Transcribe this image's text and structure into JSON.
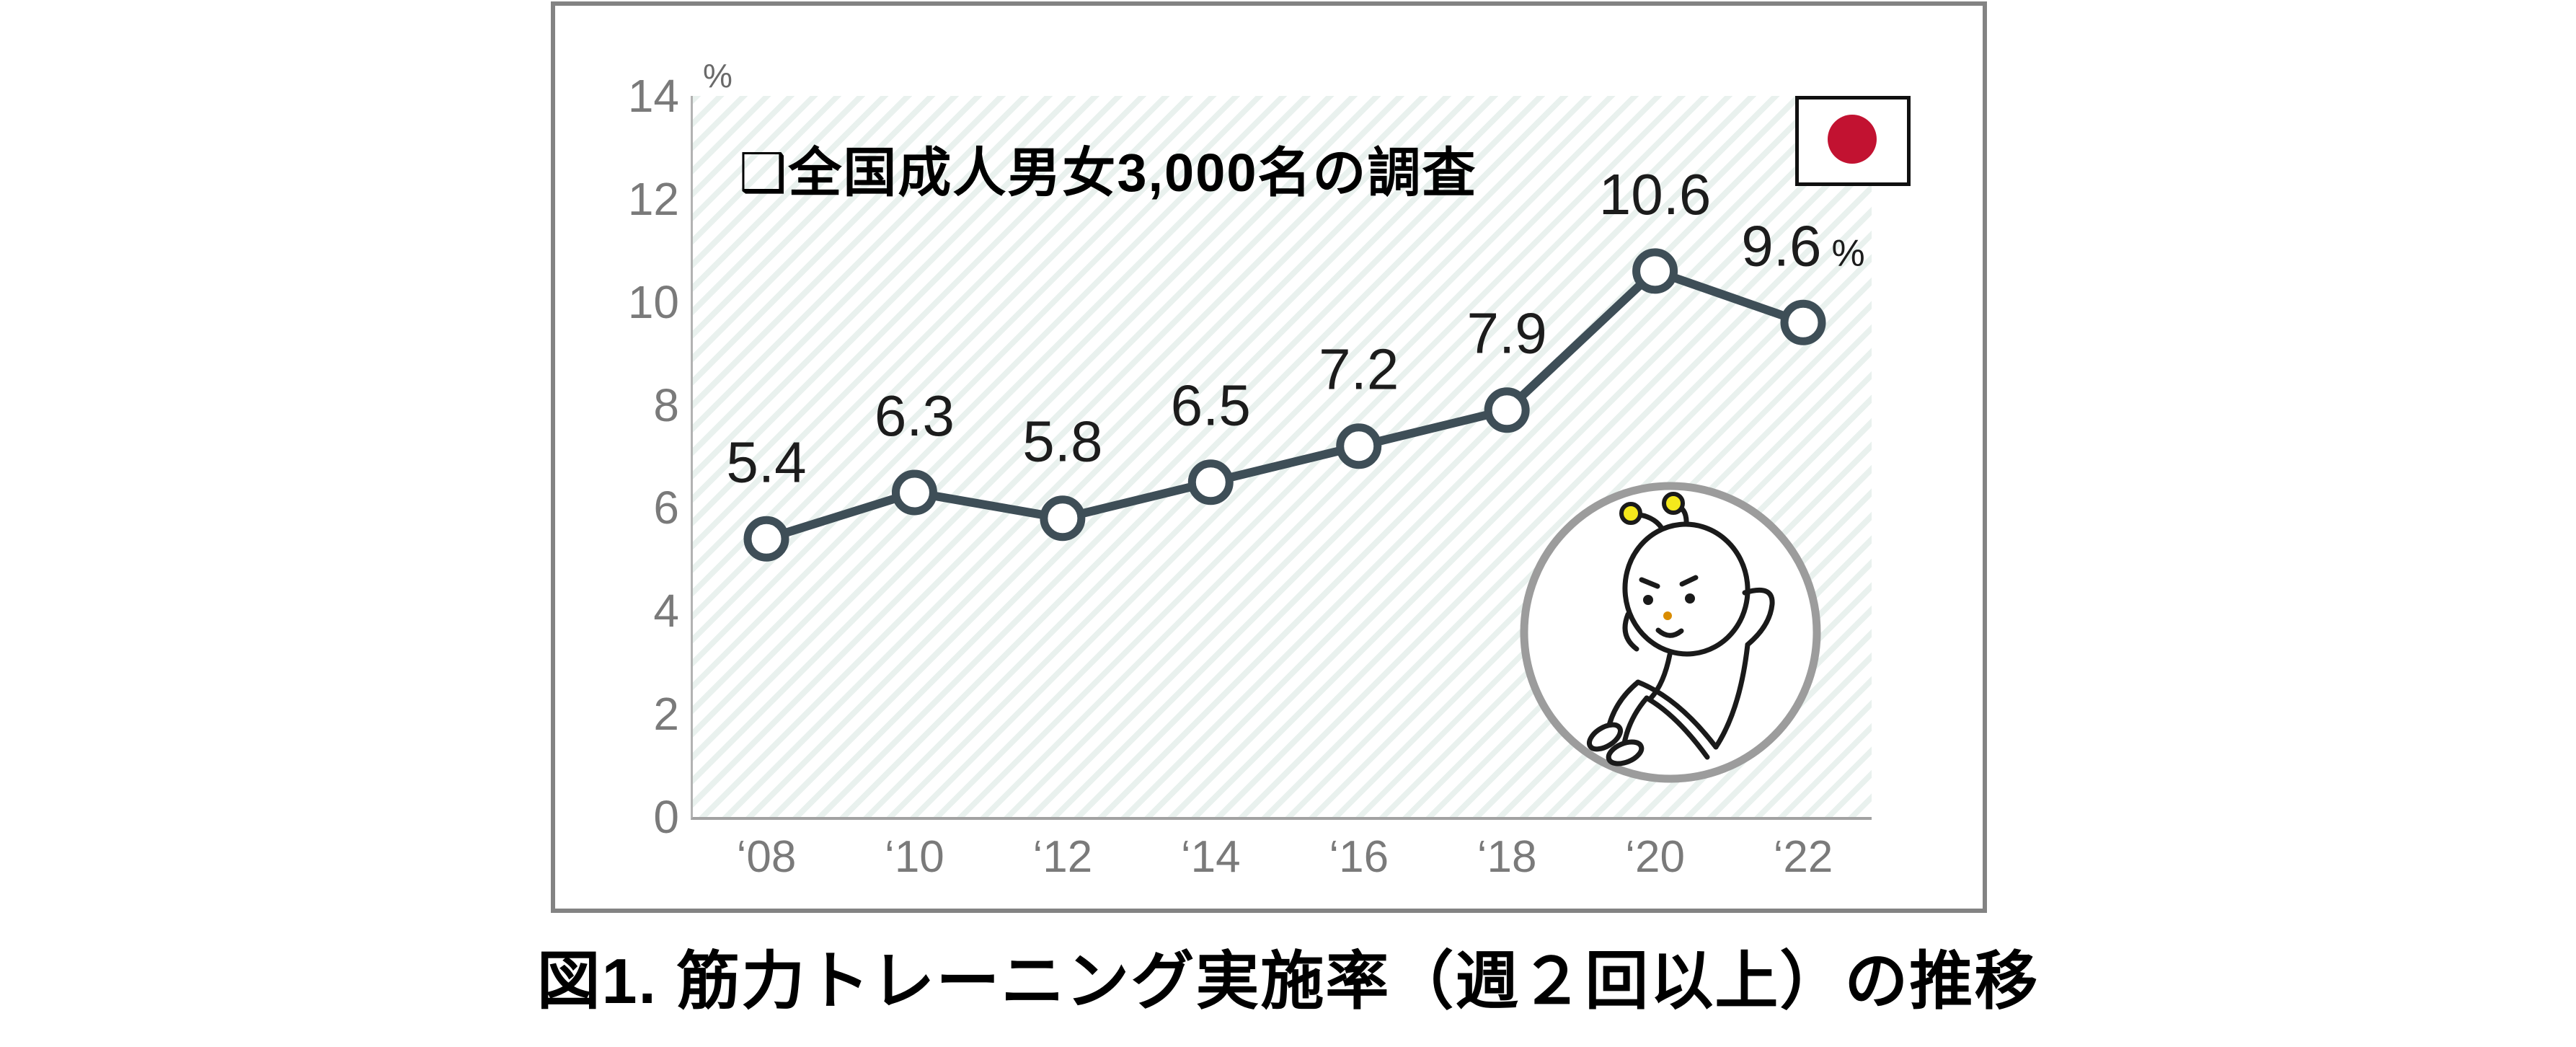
{
  "figure": {
    "caption": "図1. 筋力トレーニング実施率（週２回以上）の推移"
  },
  "chart": {
    "icons": {
      "flag": "japan-flag",
      "mascot": "situp-bug-mascot"
    },
    "colors": {
      "line": "#3e4e57",
      "marker_fill": "#ffffff",
      "data_label": "#1c1c1c",
      "tick_label": "#7a7a7a",
      "hatch_stripe": "#e9f1ee",
      "flag_red": "#c21231",
      "antenna_yellow": "#f4e81c",
      "mascot_outline": "#1a1a1a",
      "badge_ring": "#9c9c9c"
    }
  },
  "chart_data": {
    "type": "line",
    "title": "",
    "annotation": "❑全国成人男女3,000名の調査",
    "categories": [
      "‘08",
      "‘10",
      "‘12",
      "‘14",
      "‘16",
      "‘18",
      "‘20",
      "‘22"
    ],
    "values": [
      5.4,
      6.3,
      5.8,
      6.5,
      7.2,
      7.9,
      10.6,
      9.6
    ],
    "data_labels": [
      "5.4",
      "6.3",
      "5.8",
      "6.5",
      "7.2",
      "7.9",
      "10.6",
      "9.6"
    ],
    "last_label_suffix": "%",
    "xlabel": "",
    "ylabel": "%",
    "ylim": [
      0,
      14
    ],
    "yticks": [
      0,
      2,
      4,
      6,
      8,
      10,
      12,
      14
    ],
    "grid": false,
    "legend": "none",
    "marker": "open-circle",
    "background": "diagonal-hatch"
  }
}
